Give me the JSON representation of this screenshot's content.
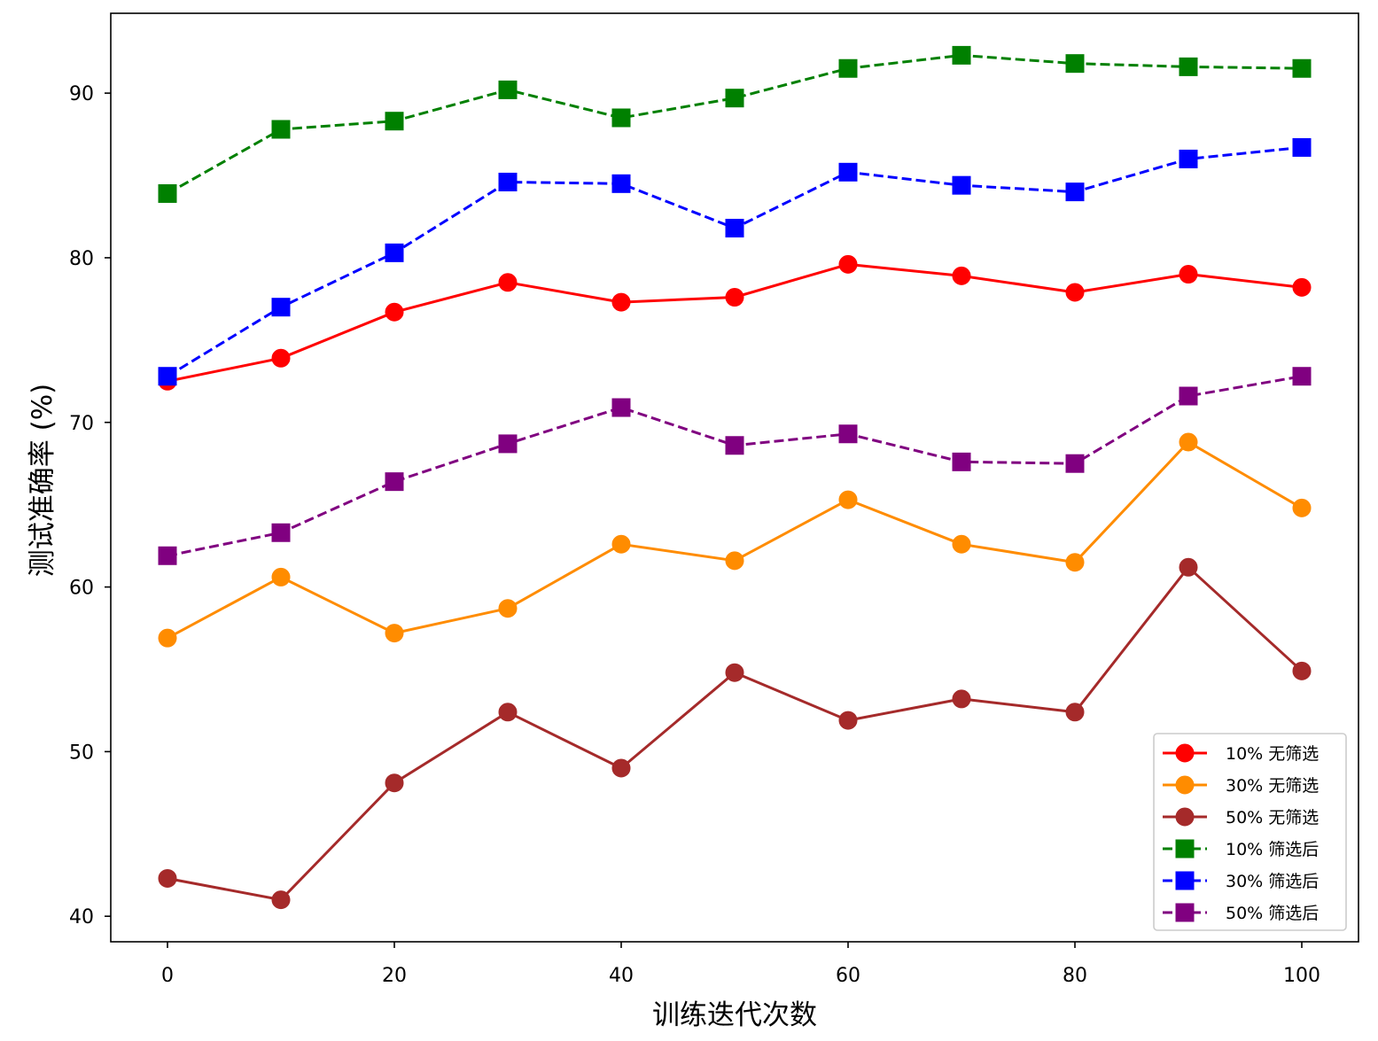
{
  "chart_data": {
    "type": "line",
    "title": "",
    "xlabel": "训练迭代次数",
    "ylabel": "测试准确率 (%)",
    "x": [
      0,
      10,
      20,
      30,
      40,
      50,
      60,
      70,
      80,
      90,
      100
    ],
    "xlim": [
      -5,
      105
    ],
    "ylim": [
      38.45,
      94.85
    ],
    "xticks": [
      0,
      20,
      40,
      60,
      80,
      100
    ],
    "yticks": [
      40,
      50,
      60,
      70,
      80,
      90
    ],
    "xtick_labels": [
      "0",
      "20",
      "40",
      "60",
      "80",
      "100"
    ],
    "ytick_labels": [
      "40",
      "50",
      "60",
      "70",
      "80",
      "90"
    ],
    "grid": false,
    "legend_position": "lower-right",
    "series": [
      {
        "name": "10% 无筛选",
        "color": "#ff0000",
        "marker": "circle",
        "linestyle": "solid",
        "values": [
          72.5,
          73.9,
          76.7,
          78.5,
          77.3,
          77.6,
          79.6,
          78.9,
          77.9,
          79.0,
          78.2
        ]
      },
      {
        "name": "30% 无筛选",
        "color": "#ff8c00",
        "marker": "circle",
        "linestyle": "solid",
        "values": [
          56.9,
          60.6,
          57.2,
          58.7,
          62.6,
          61.6,
          65.3,
          62.6,
          61.5,
          68.8,
          64.8
        ]
      },
      {
        "name": "50% 无筛选",
        "color": "#a52a2a",
        "marker": "circle",
        "linestyle": "solid",
        "values": [
          42.3,
          41.0,
          48.1,
          52.4,
          49.0,
          54.8,
          51.9,
          53.2,
          52.4,
          61.2,
          54.9
        ]
      },
      {
        "name": "10% 筛选后",
        "color": "#008000",
        "marker": "square",
        "linestyle": "dashed",
        "values": [
          83.9,
          87.8,
          88.3,
          90.2,
          88.5,
          89.7,
          91.5,
          92.3,
          91.8,
          91.6,
          91.5
        ]
      },
      {
        "name": "30% 筛选后",
        "color": "#0000ff",
        "marker": "square",
        "linestyle": "dashed",
        "values": [
          72.8,
          77.0,
          80.3,
          84.6,
          84.5,
          81.8,
          85.2,
          84.4,
          84.0,
          86.0,
          86.7
        ]
      },
      {
        "name": "50% 筛选后",
        "color": "#800080",
        "marker": "square",
        "linestyle": "dashed",
        "values": [
          61.9,
          63.3,
          66.4,
          68.7,
          70.9,
          68.6,
          69.3,
          67.6,
          67.5,
          71.6,
          72.8
        ]
      }
    ]
  }
}
